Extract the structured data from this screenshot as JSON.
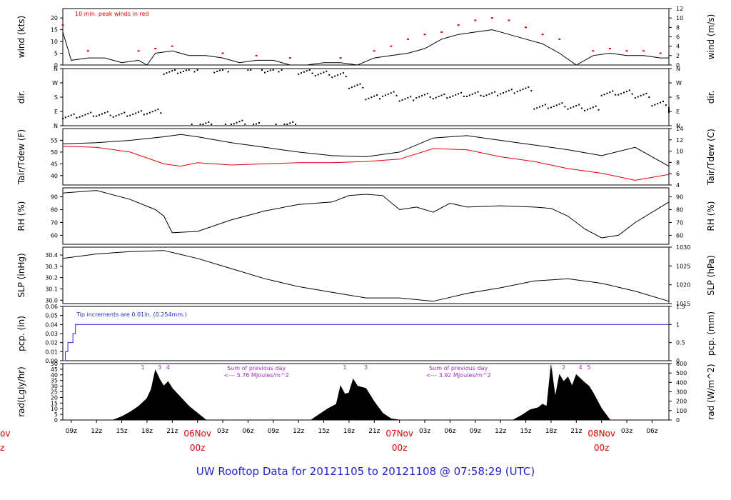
{
  "title": "UW Rooftop Data for 20121105  to  20121108 @ 07:58:29  (UTC)",
  "x_axis": {
    "start": "2012-11-05T07:58Z",
    "end": "2012-11-08T07:58Z",
    "hour_tick_labels": [
      "09z",
      "12z",
      "15z",
      "18z",
      "21z",
      "03z",
      "06z",
      "09z",
      "12z",
      "15z",
      "18z",
      "21z",
      "03z",
      "06z",
      "09z",
      "12z",
      "15z",
      "18z",
      "21z",
      "03z",
      "06z"
    ],
    "day_labels": [
      {
        "date": "06Nov",
        "time": "00z"
      },
      {
        "date": "07Nov",
        "time": "00z"
      },
      {
        "date": "08Nov",
        "time": "00z"
      }
    ],
    "partial_left_label": {
      "date": "ov",
      "time": "z"
    }
  },
  "chart_data": [
    {
      "type": "line",
      "panel": "wind",
      "ylabel_left": "wind (kts)",
      "ylabel_right": "wind (m/s)",
      "ylim": [
        0,
        24
      ],
      "yticks_left": [
        "0",
        "5",
        "10",
        "15",
        "20"
      ],
      "yticks_right": [
        "0",
        "2",
        "4",
        "6",
        "8",
        "10",
        "12"
      ],
      "annotation": "10 min. peak winds in red",
      "series": [
        {
          "color": "#000000",
          "x_hours": [
            0,
            1,
            3,
            5,
            7,
            9,
            10,
            11,
            13,
            15,
            17,
            19,
            21,
            23,
            25,
            27,
            29,
            31,
            33,
            35,
            37,
            39,
            41,
            43,
            45,
            47,
            49,
            51,
            53,
            55,
            57,
            59,
            61,
            63,
            65,
            67,
            69,
            71,
            72
          ],
          "values": [
            14,
            2,
            3,
            3,
            1,
            2,
            0,
            5,
            6,
            4,
            4,
            3,
            1,
            2,
            2,
            0,
            0,
            1,
            1,
            0,
            3,
            4,
            5,
            7,
            11,
            13,
            14,
            15,
            13,
            11,
            9,
            5,
            0,
            4,
            5,
            4,
            4,
            3,
            3
          ]
        },
        {
          "color": "#e00000",
          "x_hours": [
            0,
            3,
            9,
            11,
            13,
            19,
            23,
            27,
            33,
            37,
            39,
            41,
            43,
            45,
            47,
            49,
            51,
            53,
            55,
            57,
            59,
            63,
            65,
            67,
            69,
            71
          ],
          "values": [
            17,
            6,
            6,
            7,
            8,
            5,
            4,
            3,
            3,
            6,
            8,
            11,
            13,
            14,
            17,
            19,
            20,
            19,
            16,
            13,
            11,
            6,
            7,
            6,
            6,
            5
          ]
        }
      ]
    },
    {
      "type": "scatter",
      "panel": "dir",
      "ylabel_left": "dir.",
      "ylabel_right": "dir.",
      "yticks": [
        "N",
        "E",
        "S",
        "W",
        "N"
      ],
      "series": [
        {
          "color": "#000000",
          "x_hours": [
            0,
            2,
            4,
            6,
            8,
            10,
            12,
            14,
            16,
            18,
            20,
            22,
            24,
            26,
            28,
            30,
            32,
            34,
            36,
            38,
            40,
            42,
            44,
            46,
            48,
            50,
            52,
            54,
            56,
            58,
            60,
            62,
            64,
            66,
            68,
            70,
            72
          ],
          "values": [
            60,
            70,
            75,
            70,
            80,
            90,
            340,
            350,
            10,
            350,
            20,
            5,
            350,
            10,
            340,
            330,
            320,
            250,
            180,
            200,
            170,
            190,
            185,
            195,
            200,
            200,
            215,
            230,
            120,
            130,
            120,
            110,
            205,
            210,
            190,
            140,
            100
          ]
        }
      ]
    },
    {
      "type": "line",
      "panel": "temperature",
      "ylabel_left": "Tair/Tdew (F)",
      "ylabel_right": "Tair/Tdew (C)",
      "ylim": [
        36,
        60
      ],
      "yticks_left": [
        "40",
        "45",
        "50",
        "55"
      ],
      "yticks_right": [
        "4",
        "6",
        "8",
        "10",
        "12",
        "14"
      ],
      "series": [
        {
          "name": "Tair",
          "color": "#000000",
          "x_hours": [
            0,
            4,
            8,
            12,
            14,
            16,
            20,
            24,
            28,
            32,
            36,
            40,
            44,
            48,
            52,
            56,
            60,
            64,
            68,
            72
          ],
          "values": [
            53.5,
            54,
            55,
            56.5,
            57.5,
            56.5,
            54,
            52,
            50,
            48.5,
            48,
            50,
            56,
            57,
            55,
            53,
            51,
            48.5,
            52,
            44
          ]
        },
        {
          "name": "Tdew",
          "color": "#e00000",
          "x_hours": [
            0,
            4,
            8,
            12,
            14,
            16,
            20,
            24,
            28,
            32,
            36,
            40,
            44,
            48,
            52,
            56,
            60,
            64,
            68,
            72
          ],
          "values": [
            52.5,
            52,
            50,
            45,
            44,
            45.5,
            44.5,
            45,
            45.5,
            45.5,
            46,
            47,
            51.5,
            51,
            48,
            46,
            43,
            41,
            38,
            40.5
          ]
        }
      ]
    },
    {
      "type": "line",
      "panel": "rh",
      "ylabel_left": "RH (%)",
      "ylabel_right": "RH (%)",
      "ylim": [
        53,
        97
      ],
      "yticks": [
        "60",
        "70",
        "80",
        "90"
      ],
      "series": [
        {
          "color": "#000000",
          "x_hours": [
            0,
            4,
            8,
            11,
            12,
            13,
            16,
            20,
            24,
            28,
            32,
            34,
            36,
            38,
            40,
            42,
            44,
            46,
            48,
            52,
            56,
            58,
            60,
            62,
            64,
            66,
            68,
            72
          ],
          "values": [
            93,
            95,
            88,
            80,
            75,
            62,
            63,
            72,
            79,
            84,
            86,
            91,
            92,
            91,
            80,
            82,
            78,
            85,
            82,
            83,
            82,
            81,
            75,
            65,
            58,
            60,
            70,
            86
          ]
        }
      ]
    },
    {
      "type": "line",
      "panel": "slp",
      "ylabel_left": "SLP (inHg)",
      "ylabel_right": "SLP (hPa)",
      "ylim": [
        29.97,
        30.47
      ],
      "yticks_left": [
        "30.0",
        "30.1",
        "30.2",
        "30.3",
        "30.4"
      ],
      "yticks_right": [
        "1015",
        "1020",
        "1025",
        "1030"
      ],
      "series": [
        {
          "color": "#000000",
          "x_hours": [
            0,
            4,
            8,
            12,
            16,
            20,
            24,
            28,
            32,
            36,
            40,
            44,
            48,
            52,
            56,
            60,
            64,
            68,
            72
          ],
          "values": [
            30.37,
            30.41,
            30.43,
            30.44,
            30.37,
            30.28,
            30.19,
            30.12,
            30.07,
            30.02,
            30.02,
            29.99,
            30.06,
            30.11,
            30.17,
            30.19,
            30.15,
            30.08,
            29.99
          ]
        }
      ]
    },
    {
      "type": "line",
      "panel": "pcp",
      "ylabel_left": "pcp. (in)",
      "ylabel_right": "pcp. (mm)",
      "ylim": [
        0,
        0.06
      ],
      "yticks_left": [
        "0.00",
        "0.01",
        "0.02",
        "0.03",
        "0.04",
        "0.05",
        "0.06"
      ],
      "yticks_right": [
        "0",
        "0.5",
        "1",
        "1.5"
      ],
      "annotation": "Tip increments are 0.01in. (0.254mm.)",
      "series": [
        {
          "color": "#2a2ad0",
          "x_hours": [
            0,
            0.3,
            0.6,
            1.2,
            1.5
          ],
          "values": [
            0.0,
            0.01,
            0.02,
            0.03,
            0.04
          ]
        }
      ]
    },
    {
      "type": "area",
      "panel": "radiation",
      "ylabel_left": "rad(Lgly/hr)",
      "ylabel_right": "rad (W/m^2)",
      "ylim": [
        0,
        50
      ],
      "yticks_left": [
        "0",
        "5",
        "10",
        "15",
        "20",
        "25",
        "30",
        "35",
        "40",
        "45",
        "50"
      ],
      "yticks_right": [
        "0",
        "100",
        "200",
        "300",
        "400",
        "500",
        "600"
      ],
      "sun_markers": [
        {
          "x_hour": 9.5,
          "label": "1"
        },
        {
          "x_hour": 11.5,
          "label": "3"
        },
        {
          "x_hour": 12.5,
          "label": "4"
        },
        {
          "x_hour": 33.5,
          "label": "1"
        },
        {
          "x_hour": 36,
          "label": "3"
        },
        {
          "x_hour": 58,
          "label": "1"
        },
        {
          "x_hour": 59.5,
          "label": "2"
        },
        {
          "x_hour": 61.5,
          "label": "4"
        },
        {
          "x_hour": 62.5,
          "label": "5"
        }
      ],
      "day_sums": [
        {
          "line1": "Sum of previous day",
          "line2": "<--- 5.76 MJoules/m^2",
          "x_hour": 23
        },
        {
          "line1": "Sum of previous day",
          "line2": "<--- 3.92 MJoules/m^2",
          "x_hour": 47
        }
      ],
      "series": [
        {
          "color": "#000000",
          "x_hours": [
            6,
            7,
            8,
            9,
            10,
            10.5,
            11,
            11.5,
            12,
            12.5,
            13,
            14,
            15,
            16,
            17,
            29.5,
            30.5,
            31.5,
            32.5,
            33,
            33.5,
            34,
            34.5,
            35,
            36,
            37,
            38,
            39,
            40,
            53.5,
            54.5,
            55.5,
            56.5,
            57,
            57.5,
            58,
            58.5,
            59,
            59.5,
            60,
            60.5,
            61,
            62,
            62.5,
            63,
            64,
            65
          ],
          "values": [
            0,
            3,
            7,
            12,
            19,
            27,
            44,
            36,
            30,
            34,
            28,
            20,
            12,
            6,
            0,
            0,
            5,
            10,
            14,
            30,
            23,
            24,
            36,
            30,
            28,
            16,
            6,
            1,
            0,
            0,
            4,
            9,
            11,
            14,
            12,
            48,
            20,
            40,
            34,
            38,
            30,
            40,
            33,
            30,
            24,
            10,
            0
          ]
        }
      ]
    }
  ]
}
